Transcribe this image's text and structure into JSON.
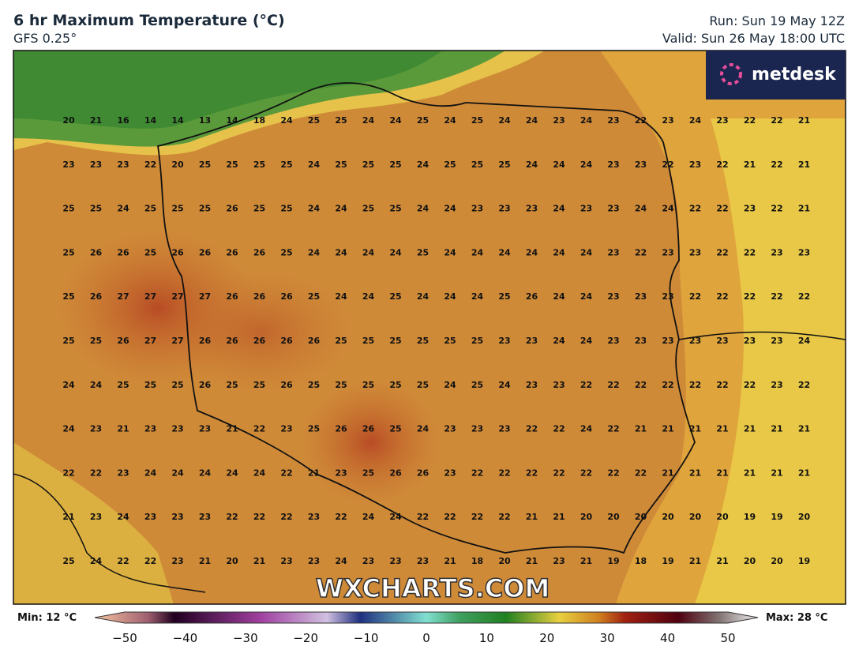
{
  "header": {
    "title": "6 hr Maximum Temperature (°C)",
    "subtitle": "GFS 0.25°",
    "run": "Run: Sun 19 May 12Z",
    "valid": "Valid: Sun 26 May 18:00 UTC"
  },
  "logo": "metdesk",
  "watermark": "WXCHARTS.COM",
  "grid": {
    "rows": [
      [
        20,
        21,
        16,
        14,
        14,
        13,
        14,
        18,
        24,
        25,
        25,
        24,
        24,
        25,
        24,
        25,
        24,
        24,
        23,
        24,
        23,
        22,
        23,
        24,
        23,
        22,
        22,
        21
      ],
      [
        23,
        23,
        23,
        22,
        20,
        25,
        25,
        25,
        25,
        24,
        25,
        25,
        25,
        24,
        25,
        25,
        25,
        24,
        24,
        24,
        23,
        23,
        22,
        23,
        22,
        21,
        22,
        21
      ],
      [
        25,
        25,
        24,
        25,
        25,
        25,
        26,
        25,
        25,
        24,
        24,
        25,
        25,
        24,
        24,
        23,
        23,
        23,
        24,
        23,
        23,
        24,
        24,
        22,
        22,
        23,
        22,
        21
      ],
      [
        25,
        26,
        26,
        25,
        26,
        26,
        26,
        26,
        25,
        24,
        24,
        24,
        24,
        25,
        24,
        24,
        24,
        24,
        24,
        24,
        23,
        22,
        23,
        23,
        22,
        22,
        23,
        23
      ],
      [
        25,
        26,
        27,
        27,
        27,
        27,
        26,
        26,
        26,
        25,
        24,
        24,
        25,
        24,
        24,
        24,
        25,
        26,
        24,
        24,
        23,
        23,
        23,
        22,
        22,
        22,
        22,
        22
      ],
      [
        25,
        25,
        26,
        27,
        27,
        26,
        26,
        26,
        26,
        26,
        25,
        25,
        25,
        25,
        25,
        25,
        23,
        23,
        24,
        24,
        23,
        23,
        23,
        23,
        23,
        23,
        23,
        24
      ],
      [
        24,
        24,
        25,
        25,
        25,
        26,
        25,
        25,
        26,
        25,
        25,
        25,
        25,
        25,
        24,
        25,
        24,
        23,
        23,
        22,
        22,
        22,
        22,
        22,
        22,
        22,
        23,
        22
      ],
      [
        24,
        23,
        21,
        23,
        23,
        23,
        21,
        22,
        23,
        25,
        26,
        26,
        25,
        24,
        23,
        23,
        23,
        22,
        22,
        24,
        22,
        21,
        21,
        21,
        21,
        21,
        21,
        21
      ],
      [
        22,
        22,
        23,
        24,
        24,
        24,
        24,
        24,
        22,
        21,
        23,
        25,
        26,
        26,
        23,
        22,
        22,
        22,
        22,
        22,
        22,
        22,
        21,
        21,
        21,
        21,
        21,
        21
      ],
      [
        21,
        23,
        24,
        23,
        23,
        23,
        22,
        22,
        22,
        23,
        22,
        24,
        24,
        22,
        22,
        22,
        22,
        21,
        21,
        20,
        20,
        20,
        20,
        20,
        20,
        19,
        19,
        20
      ],
      [
        25,
        24,
        22,
        22,
        23,
        21,
        20,
        21,
        23,
        23,
        24,
        23,
        23,
        23,
        21,
        18,
        20,
        21,
        23,
        21,
        19,
        18,
        19,
        21,
        21,
        20,
        20,
        19
      ]
    ]
  },
  "colorbar": {
    "min": "Min: 12 °C",
    "max": "Max: 28 °C",
    "ticks": [
      "−50",
      "−40",
      "−30",
      "−20",
      "−10",
      "0",
      "10",
      "20",
      "30",
      "40",
      "50"
    ]
  }
}
